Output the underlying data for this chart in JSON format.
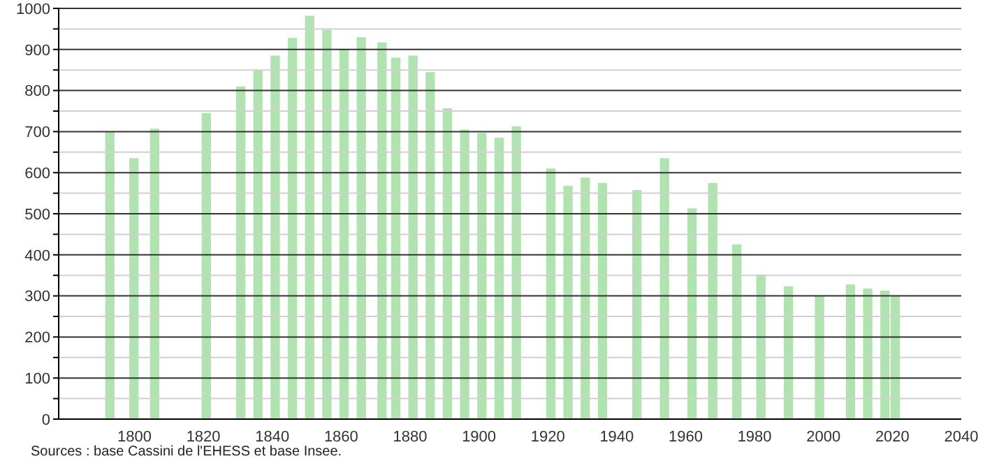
{
  "chart_data": {
    "type": "bar",
    "x": [
      1793,
      1800,
      1806,
      1821,
      1831,
      1836,
      1841,
      1846,
      1851,
      1856,
      1861,
      1866,
      1872,
      1876,
      1881,
      1886,
      1891,
      1896,
      1901,
      1906,
      1911,
      1921,
      1926,
      1931,
      1936,
      1946,
      1954,
      1962,
      1968,
      1975,
      1982,
      1990,
      1999,
      2008,
      2013,
      2018,
      2021
    ],
    "values": [
      700,
      635,
      707,
      745,
      810,
      850,
      885,
      928,
      982,
      948,
      900,
      930,
      917,
      880,
      885,
      845,
      757,
      705,
      697,
      685,
      713,
      610,
      568,
      588,
      575,
      558,
      635,
      513,
      575,
      425,
      352,
      323,
      300,
      328,
      318,
      313,
      300
    ],
    "color": "#b0e3b0",
    "xlim": [
      1778,
      2040
    ],
    "xticks": [
      1800,
      1820,
      1840,
      1860,
      1880,
      1900,
      1920,
      1940,
      1960,
      1980,
      2000,
      2020,
      2040
    ],
    "ylim": [
      0,
      1000
    ],
    "yticks": [
      0,
      {
        "value": 50,
        "label": null
      },
      100,
      {
        "value": 150,
        "label": null
      },
      200,
      {
        "value": 250,
        "label": null
      },
      300,
      {
        "value": 350,
        "label": null
      },
      400,
      {
        "value": 450,
        "label": null
      },
      500,
      {
        "value": 550,
        "label": null
      },
      600,
      {
        "value": 650,
        "label": null
      },
      700,
      {
        "value": 750,
        "label": null
      },
      800,
      {
        "value": 850,
        "label": null
      },
      900,
      {
        "value": 950,
        "label": null
      },
      1000
    ],
    "grid": "y",
    "annotations": [
      "Sources : base Cassini de l'EHESS et base Insee."
    ]
  }
}
